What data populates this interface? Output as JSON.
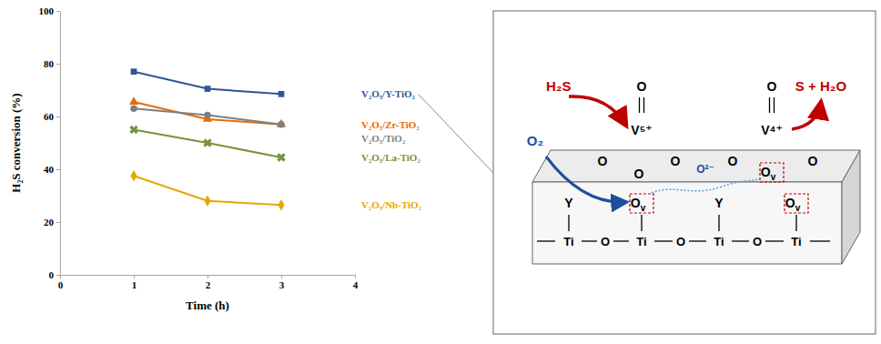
{
  "chart_data": {
    "type": "line",
    "x_label": "Time (h)",
    "y_label": "H₂S conversion (%)",
    "x": [
      1,
      2,
      3
    ],
    "xlim": [
      0,
      4
    ],
    "xticks": [
      0,
      1,
      2,
      3,
      4
    ],
    "ylim": [
      0,
      100
    ],
    "yticks": [
      0,
      20,
      40,
      60,
      80,
      100
    ],
    "grid": false,
    "series": [
      {
        "name": "V₂O₅/Y-TiO₂",
        "color": "#2f5597",
        "marker": "square",
        "values": [
          77,
          70.5,
          68.5
        ]
      },
      {
        "name": "V₂O₅/Zr-TiO₂",
        "color": "#e46c0a",
        "marker": "triangle",
        "values": [
          65.5,
          59,
          57
        ]
      },
      {
        "name": "V₂O₅/TiO₂",
        "color": "#7f7f7f",
        "marker": "circle",
        "values": [
          63,
          60.5,
          57
        ]
      },
      {
        "name": "V₂O₅/La-TiO₂",
        "color": "#77933c",
        "marker": "x",
        "values": [
          55,
          50,
          44.5
        ]
      },
      {
        "name": "V₂O₅/Nb-TiO₂",
        "color": "#e3a800",
        "marker": "diamond",
        "values": [
          37.5,
          28,
          26.5
        ]
      }
    ]
  },
  "diagram": {
    "reactant": "H₂S",
    "product": "S + H₂O",
    "oxygen": "O₂",
    "lattice_oxygen": "O²⁻",
    "vanadium": [
      "V⁵⁺",
      "V⁴⁺"
    ],
    "oxygen_atom": "O",
    "vacancy": {
      "base": "O",
      "sub": "v"
    },
    "dopant": "Y",
    "chain": [
      "Ti",
      "O",
      "Ti",
      "O",
      "Ti",
      "O",
      "Ti"
    ]
  }
}
